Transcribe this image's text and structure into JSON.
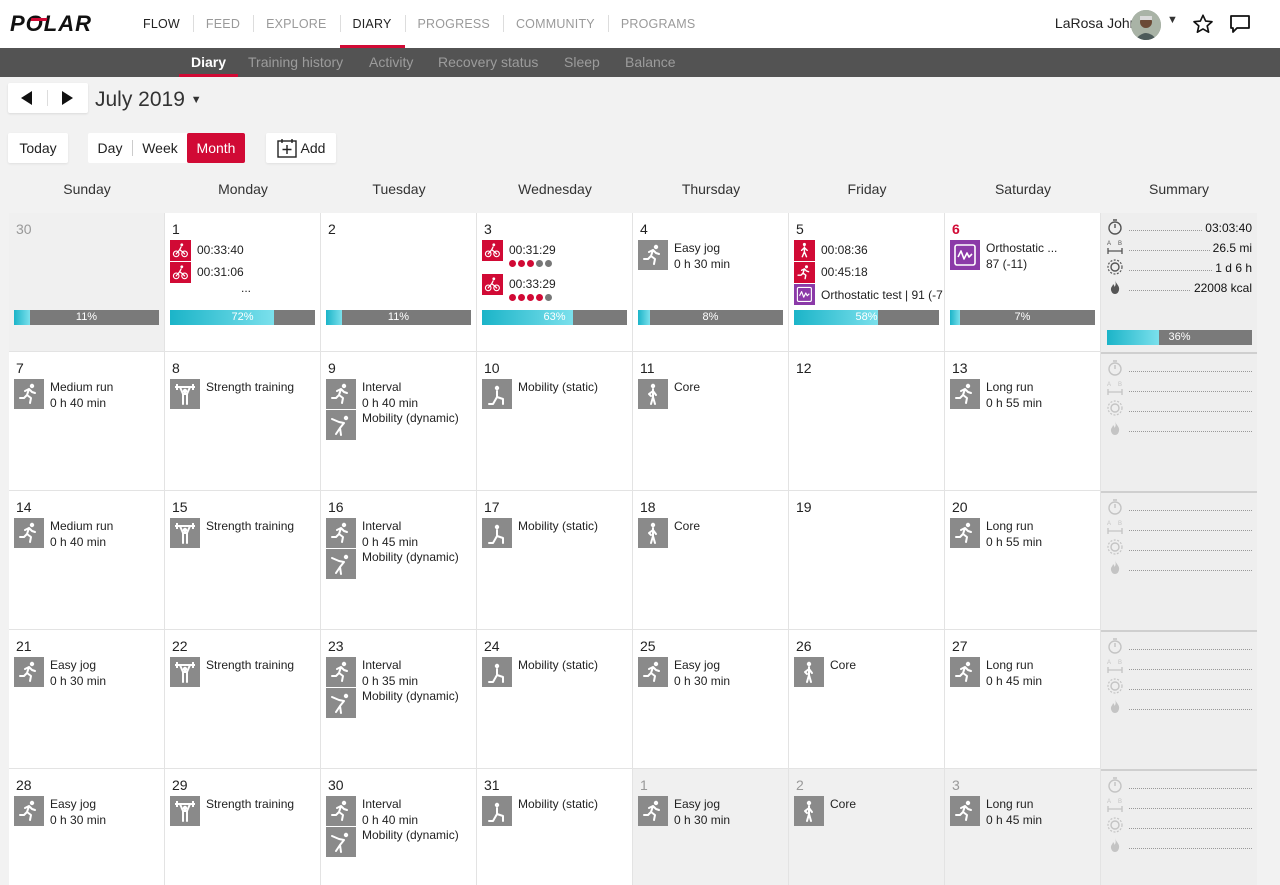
{
  "header": {
    "logo_text": "POLAR",
    "nav": [
      "FLOW",
      "FEED",
      "EXPLORE",
      "DIARY",
      "PROGRESS",
      "COMMUNITY",
      "PROGRAMS"
    ],
    "user_name": "LaRosa Johnson",
    "brand_color": "#d10a35"
  },
  "subnav": [
    "Diary",
    "Training history",
    "Activity",
    "Recovery status",
    "Sleep",
    "Balance"
  ],
  "toolbar": {
    "month_label": "July 2019",
    "today": "Today",
    "day": "Day",
    "week": "Week",
    "month": "Month",
    "add": "Add"
  },
  "weekdays": [
    "Sunday",
    "Monday",
    "Tuesday",
    "Wednesday",
    "Thursday",
    "Friday",
    "Saturday",
    "Summary"
  ],
  "weeks": [
    {
      "days": [
        {
          "num": "30",
          "muted": true,
          "entries": [],
          "progress": "11%",
          "pct": 11
        },
        {
          "num": "1",
          "entries": [
            {
              "kind": "timer",
              "icon": "cycling-icon",
              "time": "00:33:40"
            },
            {
              "kind": "timer",
              "icon": "cycling-icon",
              "time": "00:31:06"
            },
            {
              "kind": "more",
              "text": "..."
            }
          ],
          "progress": "72%",
          "pct": 72
        },
        {
          "num": "2",
          "entries": [],
          "progress": "11%",
          "pct": 11
        },
        {
          "num": "3",
          "entries": [
            {
              "kind": "timer-dots",
              "icon": "cycling-icon",
              "time": "00:31:29",
              "dots": [
                1,
                1,
                1,
                0,
                0
              ]
            },
            {
              "kind": "timer-dots",
              "icon": "cycling-icon",
              "time": "00:33:29",
              "dots": [
                1,
                1,
                1,
                1,
                0
              ]
            }
          ],
          "progress": "63%",
          "pct": 63
        },
        {
          "num": "4",
          "entries": [
            {
              "kind": "plan",
              "icon": "running-icon",
              "name": "Easy jog",
              "sub": "0 h 30 min"
            }
          ],
          "progress": "8%",
          "pct": 8
        },
        {
          "num": "5",
          "entries": [
            {
              "kind": "timer",
              "icon": "walking-icon",
              "time": "00:08:36"
            },
            {
              "kind": "timer",
              "icon": "running-icon",
              "time": "00:45:18"
            },
            {
              "kind": "ortho-small",
              "icon": "orthostatic-icon",
              "text": "Orthostatic test | 91 (-7"
            }
          ],
          "progress": "58%",
          "pct": 58
        },
        {
          "num": "6",
          "red": true,
          "entries": [
            {
              "kind": "ortho",
              "icon": "orthostatic-icon",
              "name": "Orthostatic ...",
              "sub": "87 (-11)"
            }
          ],
          "progress": "7%",
          "pct": 7
        }
      ],
      "summary": {
        "duration": "03:03:40",
        "distance": "26.5 mi",
        "recovery": "1 d 6 h",
        "calories": "22008 kcal",
        "progress": "36%",
        "pct": 36
      }
    },
    {
      "days": [
        {
          "num": "7",
          "entries": [
            {
              "kind": "plan",
              "icon": "running-icon",
              "name": "Medium run",
              "sub": "0 h 40 min"
            }
          ]
        },
        {
          "num": "8",
          "entries": [
            {
              "kind": "plan",
              "icon": "strength-icon",
              "name": "Strength training"
            }
          ]
        },
        {
          "num": "9",
          "entries": [
            {
              "kind": "plan",
              "icon": "running-icon",
              "name": "Interval",
              "sub": "0 h 40 min"
            },
            {
              "kind": "plan2",
              "icon": "stretch-icon",
              "name": "Mobility (dynamic)"
            }
          ]
        },
        {
          "num": "10",
          "entries": [
            {
              "kind": "plan",
              "icon": "mobility-icon",
              "name": "Mobility (static)"
            }
          ]
        },
        {
          "num": "11",
          "entries": [
            {
              "kind": "plan",
              "icon": "core-icon",
              "name": "Core"
            }
          ]
        },
        {
          "num": "12",
          "entries": []
        },
        {
          "num": "13",
          "entries": [
            {
              "kind": "plan",
              "icon": "running-icon",
              "name": "Long run",
              "sub": "0 h 55 min"
            }
          ]
        }
      ]
    },
    {
      "days": [
        {
          "num": "14",
          "entries": [
            {
              "kind": "plan",
              "icon": "running-icon",
              "name": "Medium run",
              "sub": "0 h 40 min"
            }
          ]
        },
        {
          "num": "15",
          "entries": [
            {
              "kind": "plan",
              "icon": "strength-icon",
              "name": "Strength training"
            }
          ]
        },
        {
          "num": "16",
          "entries": [
            {
              "kind": "plan",
              "icon": "running-icon",
              "name": "Interval",
              "sub": "0 h 45 min"
            },
            {
              "kind": "plan2",
              "icon": "stretch-icon",
              "name": "Mobility (dynamic)"
            }
          ]
        },
        {
          "num": "17",
          "entries": [
            {
              "kind": "plan",
              "icon": "mobility-icon",
              "name": "Mobility (static)"
            }
          ]
        },
        {
          "num": "18",
          "entries": [
            {
              "kind": "plan",
              "icon": "core-icon",
              "name": "Core"
            }
          ]
        },
        {
          "num": "19",
          "entries": []
        },
        {
          "num": "20",
          "entries": [
            {
              "kind": "plan",
              "icon": "running-icon",
              "name": "Long run",
              "sub": "0 h 55 min"
            }
          ]
        }
      ]
    },
    {
      "days": [
        {
          "num": "21",
          "entries": [
            {
              "kind": "plan",
              "icon": "running-icon",
              "name": "Easy jog",
              "sub": "0 h 30 min"
            }
          ]
        },
        {
          "num": "22",
          "entries": [
            {
              "kind": "plan",
              "icon": "strength-icon",
              "name": "Strength training"
            }
          ]
        },
        {
          "num": "23",
          "entries": [
            {
              "kind": "plan",
              "icon": "running-icon",
              "name": "Interval",
              "sub": "0 h 35 min"
            },
            {
              "kind": "plan2",
              "icon": "stretch-icon",
              "name": "Mobility (dynamic)"
            }
          ]
        },
        {
          "num": "24",
          "entries": [
            {
              "kind": "plan",
              "icon": "mobility-icon",
              "name": "Mobility (static)"
            }
          ]
        },
        {
          "num": "25",
          "entries": [
            {
              "kind": "plan",
              "icon": "running-icon",
              "name": "Easy jog",
              "sub": "0 h 30 min"
            }
          ]
        },
        {
          "num": "26",
          "entries": [
            {
              "kind": "plan",
              "icon": "core-icon",
              "name": "Core"
            }
          ]
        },
        {
          "num": "27",
          "entries": [
            {
              "kind": "plan",
              "icon": "running-icon",
              "name": "Long run",
              "sub": "0 h 45 min"
            }
          ]
        }
      ]
    },
    {
      "days": [
        {
          "num": "28",
          "entries": [
            {
              "kind": "plan",
              "icon": "running-icon",
              "name": "Easy jog",
              "sub": "0 h 30 min"
            }
          ]
        },
        {
          "num": "29",
          "entries": [
            {
              "kind": "plan",
              "icon": "strength-icon",
              "name": "Strength training"
            }
          ]
        },
        {
          "num": "30",
          "entries": [
            {
              "kind": "plan",
              "icon": "running-icon",
              "name": "Interval",
              "sub": "0 h 40 min"
            },
            {
              "kind": "plan2",
              "icon": "stretch-icon",
              "name": "Mobility (dynamic)"
            }
          ]
        },
        {
          "num": "31",
          "entries": [
            {
              "kind": "plan",
              "icon": "mobility-icon",
              "name": "Mobility (static)"
            }
          ]
        },
        {
          "num": "1",
          "muted": true,
          "grey": true,
          "entries": [
            {
              "kind": "plan",
              "icon": "running-icon",
              "name": "Easy jog",
              "sub": "0 h 30 min"
            }
          ]
        },
        {
          "num": "2",
          "muted": true,
          "grey": true,
          "entries": [
            {
              "kind": "plan",
              "icon": "core-icon",
              "name": "Core"
            }
          ]
        },
        {
          "num": "3",
          "muted": true,
          "grey": true,
          "entries": [
            {
              "kind": "plan",
              "icon": "running-icon",
              "name": "Long run",
              "sub": "0 h 45 min"
            }
          ]
        }
      ]
    }
  ]
}
